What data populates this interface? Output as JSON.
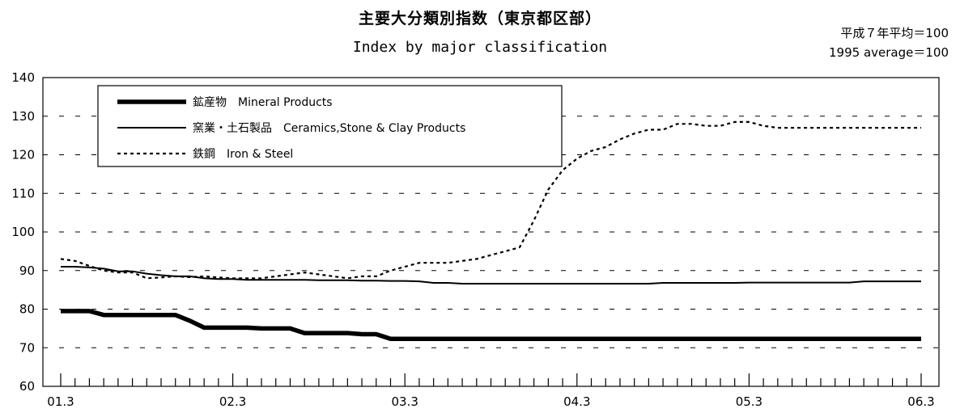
{
  "header": {
    "title_jp": "主要大分類別指数（東京都区部）",
    "title_en": "Index by major classification",
    "unit_jp": "平成７年平均＝100",
    "unit_en": "1995 average＝100"
  },
  "chart_data": {
    "type": "line",
    "title": "主要大分類別指数（東京都区部）",
    "subtitle": "Index by major classification",
    "ylim": [
      60,
      140
    ],
    "yticks": [
      60,
      70,
      80,
      90,
      100,
      110,
      120,
      130,
      140
    ],
    "grid": "horizontal dashed",
    "xtick_labels": [
      "01.3",
      "02.3",
      "03.3",
      "04.3",
      "05.3",
      "06.3"
    ],
    "legend_position": "top-left",
    "series": [
      {
        "name": "鉱産物　Mineral Products",
        "style": "thick solid",
        "values": [
          79.5,
          79.5,
          79.5,
          78.5,
          78.5,
          78.5,
          78.5,
          78.5,
          78.5,
          77.0,
          75.2,
          75.2,
          75.2,
          75.2,
          75.0,
          75.0,
          75.0,
          73.8,
          73.8,
          73.8,
          73.8,
          73.5,
          73.5,
          72.3,
          72.3,
          72.3,
          72.3,
          72.3,
          72.3,
          72.3,
          72.3,
          72.3,
          72.3,
          72.3,
          72.3,
          72.3,
          72.3,
          72.3,
          72.3,
          72.3,
          72.3,
          72.3,
          72.3,
          72.3,
          72.3,
          72.3,
          72.3,
          72.3,
          72.3,
          72.3,
          72.3,
          72.3,
          72.3,
          72.3,
          72.3,
          72.3,
          72.3,
          72.3,
          72.3,
          72.3,
          72.3
        ]
      },
      {
        "name": "窯業・土石製品　Ceramics,Stone & Clay Products",
        "style": "solid",
        "values": [
          91.0,
          91.0,
          90.8,
          90.5,
          89.8,
          89.8,
          89.2,
          88.8,
          88.5,
          88.5,
          88.0,
          87.8,
          87.8,
          87.6,
          87.6,
          87.6,
          87.6,
          87.6,
          87.5,
          87.5,
          87.5,
          87.4,
          87.4,
          87.3,
          87.3,
          87.2,
          86.8,
          86.8,
          86.6,
          86.6,
          86.6,
          86.6,
          86.6,
          86.6,
          86.6,
          86.6,
          86.6,
          86.6,
          86.6,
          86.6,
          86.6,
          86.6,
          86.8,
          86.8,
          86.8,
          86.8,
          86.8,
          86.8,
          86.9,
          86.9,
          86.9,
          86.9,
          86.9,
          86.9,
          86.9,
          86.9,
          87.2,
          87.2,
          87.2,
          87.2,
          87.2
        ]
      },
      {
        "name": "鉄鋼　Iron & Steel",
        "style": "dotted",
        "values": [
          93.0,
          92.5,
          91.2,
          90.0,
          89.5,
          89.5,
          88.0,
          88.2,
          88.5,
          88.3,
          88.5,
          88.2,
          88.0,
          88.0,
          88.0,
          88.5,
          89.0,
          89.5,
          89.0,
          88.5,
          88.0,
          88.5,
          88.5,
          90.0,
          91.0,
          92.0,
          92.0,
          92.0,
          92.5,
          93.0,
          94.0,
          95.0,
          96.0,
          103.0,
          111.0,
          116.0,
          119.0,
          121.0,
          122.0,
          124.0,
          125.5,
          126.5,
          126.5,
          128.0,
          128.0,
          127.5,
          127.5,
          128.5,
          128.5,
          127.5,
          127.0,
          127.0,
          127.0,
          127.0,
          127.0,
          127.0,
          127.0,
          127.0,
          127.0,
          127.0,
          127.0
        ]
      }
    ]
  }
}
